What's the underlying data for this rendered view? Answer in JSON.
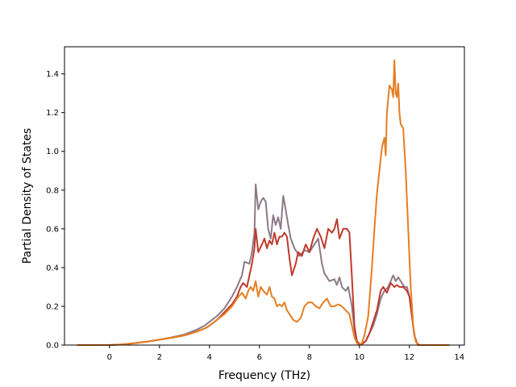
{
  "chart_data": {
    "type": "line",
    "title": "",
    "xlabel": "Frequency (THz)",
    "ylabel": "Partial Density of States",
    "xlim": [
      -1.8,
      14.2
    ],
    "ylim": [
      0.0,
      1.54
    ],
    "xticks": [
      0,
      2,
      4,
      6,
      8,
      10,
      12,
      14
    ],
    "xtick_labels": [
      "0",
      "2",
      "4",
      "6",
      "8",
      "10",
      "12",
      "14"
    ],
    "yticks": [
      0.0,
      0.2,
      0.4,
      0.6,
      0.8,
      1.0,
      1.2,
      1.4
    ],
    "ytick_labels": [
      "0.0",
      "0.2",
      "0.4",
      "0.6",
      "0.8",
      "1.0",
      "1.2",
      "1.4"
    ],
    "grid": false,
    "legend": "none",
    "series": [
      {
        "color": "#8c7a87",
        "points": [
          [
            -1.3,
            0.0
          ],
          [
            0.0,
            0.0
          ],
          [
            0.5,
            0.003
          ],
          [
            1.0,
            0.01
          ],
          [
            1.5,
            0.018
          ],
          [
            2.0,
            0.028
          ],
          [
            2.5,
            0.04
          ],
          [
            3.0,
            0.055
          ],
          [
            3.5,
            0.08
          ],
          [
            3.8,
            0.1
          ],
          [
            4.0,
            0.12
          ],
          [
            4.3,
            0.15
          ],
          [
            4.6,
            0.19
          ],
          [
            4.9,
            0.25
          ],
          [
            5.1,
            0.3
          ],
          [
            5.2,
            0.33
          ],
          [
            5.3,
            0.36
          ],
          [
            5.4,
            0.43
          ],
          [
            5.6,
            0.42
          ],
          [
            5.7,
            0.48
          ],
          [
            5.8,
            0.58
          ],
          [
            5.85,
            0.83
          ],
          [
            5.95,
            0.7
          ],
          [
            6.05,
            0.74
          ],
          [
            6.15,
            0.76
          ],
          [
            6.25,
            0.74
          ],
          [
            6.35,
            0.6
          ],
          [
            6.45,
            0.55
          ],
          [
            6.55,
            0.67
          ],
          [
            6.65,
            0.62
          ],
          [
            6.75,
            0.66
          ],
          [
            6.85,
            0.6
          ],
          [
            6.95,
            0.77
          ],
          [
            7.05,
            0.7
          ],
          [
            7.15,
            0.62
          ],
          [
            7.25,
            0.55
          ],
          [
            7.4,
            0.5
          ],
          [
            7.6,
            0.46
          ],
          [
            7.8,
            0.49
          ],
          [
            8.0,
            0.48
          ],
          [
            8.2,
            0.52
          ],
          [
            8.35,
            0.55
          ],
          [
            8.5,
            0.42
          ],
          [
            8.6,
            0.37
          ],
          [
            8.8,
            0.33
          ],
          [
            9.0,
            0.34
          ],
          [
            9.1,
            0.31
          ],
          [
            9.2,
            0.35
          ],
          [
            9.3,
            0.3
          ],
          [
            9.45,
            0.28
          ],
          [
            9.55,
            0.3
          ],
          [
            9.7,
            0.2
          ],
          [
            9.8,
            0.08
          ],
          [
            9.9,
            0.02
          ],
          [
            10.0,
            0.005
          ],
          [
            10.1,
            0.005
          ],
          [
            10.25,
            0.02
          ],
          [
            10.4,
            0.06
          ],
          [
            10.55,
            0.1
          ],
          [
            10.7,
            0.16
          ],
          [
            10.85,
            0.24
          ],
          [
            11.0,
            0.28
          ],
          [
            11.15,
            0.3
          ],
          [
            11.25,
            0.33
          ],
          [
            11.35,
            0.36
          ],
          [
            11.45,
            0.33
          ],
          [
            11.55,
            0.35
          ],
          [
            11.65,
            0.33
          ],
          [
            11.8,
            0.3
          ],
          [
            11.9,
            0.3
          ],
          [
            12.0,
            0.25
          ],
          [
            12.1,
            0.15
          ],
          [
            12.2,
            0.05
          ],
          [
            12.3,
            0.01
          ],
          [
            12.4,
            0.0
          ],
          [
            13.6,
            0.0
          ]
        ]
      },
      {
        "color": "#c0392b",
        "points": [
          [
            -1.3,
            0.0
          ],
          [
            0.0,
            0.0
          ],
          [
            0.5,
            0.003
          ],
          [
            1.0,
            0.01
          ],
          [
            1.5,
            0.018
          ],
          [
            2.0,
            0.028
          ],
          [
            2.5,
            0.038
          ],
          [
            3.0,
            0.05
          ],
          [
            3.5,
            0.07
          ],
          [
            3.8,
            0.085
          ],
          [
            4.0,
            0.1
          ],
          [
            4.3,
            0.13
          ],
          [
            4.6,
            0.17
          ],
          [
            4.9,
            0.21
          ],
          [
            5.1,
            0.25
          ],
          [
            5.25,
            0.3
          ],
          [
            5.35,
            0.32
          ],
          [
            5.5,
            0.3
          ],
          [
            5.6,
            0.36
          ],
          [
            5.7,
            0.42
          ],
          [
            5.8,
            0.5
          ],
          [
            5.85,
            0.6
          ],
          [
            5.95,
            0.48
          ],
          [
            6.1,
            0.52
          ],
          [
            6.2,
            0.55
          ],
          [
            6.3,
            0.5
          ],
          [
            6.4,
            0.54
          ],
          [
            6.5,
            0.52
          ],
          [
            6.6,
            0.58
          ],
          [
            6.7,
            0.52
          ],
          [
            6.8,
            0.56
          ],
          [
            6.9,
            0.56
          ],
          [
            7.0,
            0.58
          ],
          [
            7.1,
            0.56
          ],
          [
            7.2,
            0.45
          ],
          [
            7.3,
            0.36
          ],
          [
            7.45,
            0.42
          ],
          [
            7.55,
            0.48
          ],
          [
            7.7,
            0.46
          ],
          [
            7.85,
            0.52
          ],
          [
            8.0,
            0.48
          ],
          [
            8.15,
            0.55
          ],
          [
            8.3,
            0.6
          ],
          [
            8.45,
            0.56
          ],
          [
            8.6,
            0.5
          ],
          [
            8.75,
            0.6
          ],
          [
            8.9,
            0.58
          ],
          [
            9.0,
            0.6
          ],
          [
            9.1,
            0.65
          ],
          [
            9.2,
            0.55
          ],
          [
            9.35,
            0.6
          ],
          [
            9.5,
            0.6
          ],
          [
            9.6,
            0.58
          ],
          [
            9.7,
            0.35
          ],
          [
            9.8,
            0.1
          ],
          [
            9.9,
            0.02
          ],
          [
            10.0,
            0.005
          ],
          [
            10.1,
            0.005
          ],
          [
            10.25,
            0.02
          ],
          [
            10.4,
            0.06
          ],
          [
            10.55,
            0.12
          ],
          [
            10.7,
            0.18
          ],
          [
            10.85,
            0.28
          ],
          [
            10.95,
            0.3
          ],
          [
            11.1,
            0.27
          ],
          [
            11.25,
            0.32
          ],
          [
            11.4,
            0.3
          ],
          [
            11.5,
            0.31
          ],
          [
            11.6,
            0.3
          ],
          [
            11.75,
            0.3
          ],
          [
            11.9,
            0.28
          ],
          [
            12.0,
            0.25
          ],
          [
            12.1,
            0.15
          ],
          [
            12.2,
            0.05
          ],
          [
            12.3,
            0.01
          ],
          [
            12.4,
            0.0
          ],
          [
            13.6,
            0.0
          ]
        ]
      },
      {
        "color": "#e67e22",
        "points": [
          [
            -1.3,
            0.0
          ],
          [
            0.0,
            0.0
          ],
          [
            0.5,
            0.003
          ],
          [
            1.0,
            0.01
          ],
          [
            1.5,
            0.018
          ],
          [
            2.0,
            0.028
          ],
          [
            2.5,
            0.038
          ],
          [
            3.0,
            0.05
          ],
          [
            3.5,
            0.07
          ],
          [
            3.8,
            0.085
          ],
          [
            4.0,
            0.1
          ],
          [
            4.3,
            0.13
          ],
          [
            4.6,
            0.16
          ],
          [
            4.9,
            0.2
          ],
          [
            5.1,
            0.24
          ],
          [
            5.3,
            0.27
          ],
          [
            5.45,
            0.24
          ],
          [
            5.55,
            0.28
          ],
          [
            5.65,
            0.3
          ],
          [
            5.75,
            0.28
          ],
          [
            5.85,
            0.33
          ],
          [
            5.95,
            0.25
          ],
          [
            6.05,
            0.3
          ],
          [
            6.15,
            0.28
          ],
          [
            6.3,
            0.26
          ],
          [
            6.4,
            0.3
          ],
          [
            6.5,
            0.25
          ],
          [
            6.6,
            0.24
          ],
          [
            6.7,
            0.2
          ],
          [
            6.8,
            0.21
          ],
          [
            6.9,
            0.2
          ],
          [
            7.0,
            0.22
          ],
          [
            7.1,
            0.18
          ],
          [
            7.2,
            0.16
          ],
          [
            7.35,
            0.13
          ],
          [
            7.5,
            0.12
          ],
          [
            7.65,
            0.14
          ],
          [
            7.8,
            0.2
          ],
          [
            7.95,
            0.22
          ],
          [
            8.1,
            0.22
          ],
          [
            8.25,
            0.2
          ],
          [
            8.4,
            0.19
          ],
          [
            8.55,
            0.22
          ],
          [
            8.7,
            0.24
          ],
          [
            8.85,
            0.2
          ],
          [
            9.0,
            0.2
          ],
          [
            9.15,
            0.21
          ],
          [
            9.3,
            0.2
          ],
          [
            9.45,
            0.18
          ],
          [
            9.6,
            0.16
          ],
          [
            9.7,
            0.1
          ],
          [
            9.8,
            0.04
          ],
          [
            9.9,
            0.01
          ],
          [
            10.0,
            0.0
          ],
          [
            10.1,
            0.01
          ],
          [
            10.2,
            0.05
          ],
          [
            10.35,
            0.15
          ],
          [
            10.5,
            0.4
          ],
          [
            10.6,
            0.6
          ],
          [
            10.7,
            0.78
          ],
          [
            10.8,
            0.9
          ],
          [
            10.9,
            1.02
          ],
          [
            11.0,
            1.07
          ],
          [
            11.05,
            0.98
          ],
          [
            11.1,
            1.2
          ],
          [
            11.2,
            1.34
          ],
          [
            11.3,
            1.32
          ],
          [
            11.35,
            1.28
          ],
          [
            11.4,
            1.47
          ],
          [
            11.45,
            1.3
          ],
          [
            11.5,
            1.28
          ],
          [
            11.55,
            1.35
          ],
          [
            11.6,
            1.2
          ],
          [
            11.65,
            1.14
          ],
          [
            11.75,
            1.12
          ],
          [
            11.85,
            0.9
          ],
          [
            11.95,
            0.6
          ],
          [
            12.05,
            0.3
          ],
          [
            12.15,
            0.1
          ],
          [
            12.25,
            0.02
          ],
          [
            12.35,
            0.0
          ],
          [
            13.6,
            0.0
          ]
        ]
      }
    ]
  }
}
